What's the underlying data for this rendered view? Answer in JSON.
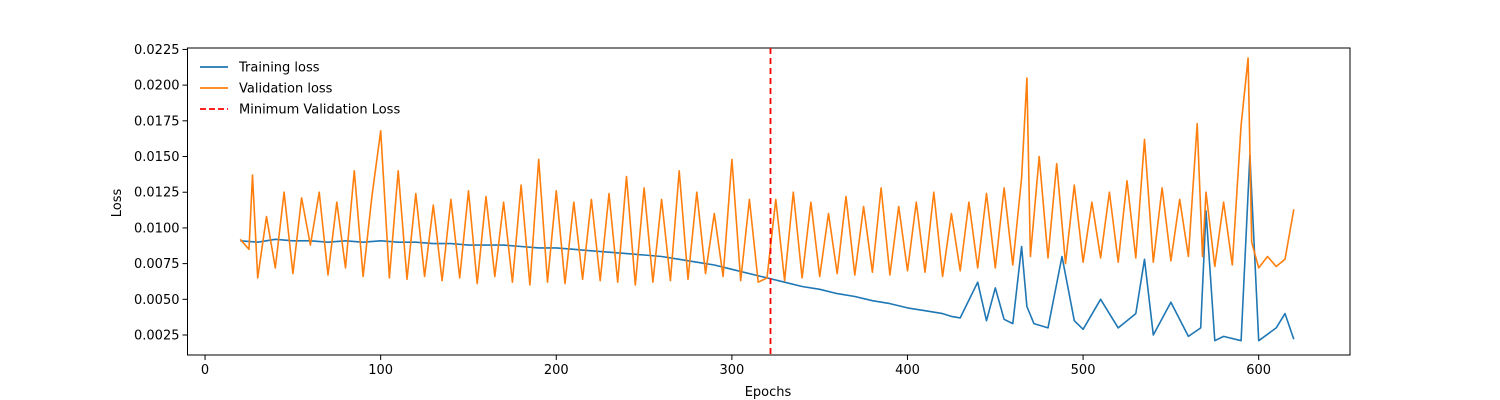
{
  "chart_data": {
    "type": "line",
    "title": "",
    "xlabel": "Epochs",
    "ylabel": "Loss",
    "xlim": [
      -10,
      652
    ],
    "ylim": [
      0.0011,
      0.0226
    ],
    "xticks": [
      0,
      100,
      200,
      300,
      400,
      500,
      600
    ],
    "xtick_labels": [
      "0",
      "100",
      "200",
      "300",
      "400",
      "500",
      "600"
    ],
    "yticks": [
      0.0025,
      0.005,
      0.0075,
      0.01,
      0.0125,
      0.015,
      0.0175,
      0.02,
      0.0225
    ],
    "ytick_labels": [
      "0.0025",
      "0.0050",
      "0.0075",
      "0.0100",
      "0.0125",
      "0.0150",
      "0.0175",
      "0.0200",
      "0.0225"
    ],
    "grid": false,
    "legend_position": "top-left",
    "series": [
      {
        "name": "Training loss",
        "color": "#1f77b4",
        "linestyle": "solid",
        "x": [
          20,
          30,
          40,
          50,
          60,
          70,
          80,
          90,
          100,
          110,
          120,
          130,
          140,
          150,
          160,
          170,
          180,
          190,
          200,
          210,
          220,
          230,
          240,
          250,
          260,
          270,
          280,
          290,
          300,
          310,
          320,
          330,
          340,
          350,
          360,
          370,
          380,
          390,
          400,
          410,
          420,
          425,
          430,
          440,
          445,
          450,
          455,
          460,
          465,
          468,
          472,
          480,
          488,
          495,
          500,
          510,
          520,
          530,
          535,
          540,
          550,
          560,
          567,
          570,
          575,
          580,
          590,
          595,
          600,
          610,
          615,
          620
        ],
        "y": [
          0.0091,
          0.009,
          0.0092,
          0.0091,
          0.0091,
          0.009,
          0.0091,
          0.009,
          0.0091,
          0.009,
          0.009,
          0.0089,
          0.0089,
          0.0088,
          0.0088,
          0.0088,
          0.0087,
          0.0086,
          0.0086,
          0.0085,
          0.0084,
          0.0083,
          0.0082,
          0.0081,
          0.008,
          0.0078,
          0.0076,
          0.0074,
          0.0071,
          0.0068,
          0.0065,
          0.0062,
          0.0059,
          0.0057,
          0.0054,
          0.0052,
          0.0049,
          0.0047,
          0.0044,
          0.0042,
          0.004,
          0.0038,
          0.0037,
          0.0062,
          0.0035,
          0.0058,
          0.0036,
          0.0033,
          0.0087,
          0.0045,
          0.0033,
          0.003,
          0.008,
          0.0035,
          0.0029,
          0.005,
          0.003,
          0.004,
          0.0078,
          0.0025,
          0.0048,
          0.0024,
          0.003,
          0.0112,
          0.0021,
          0.0024,
          0.0021,
          0.0151,
          0.0021,
          0.003,
          0.004,
          0.0022
        ]
      },
      {
        "name": "Validation loss",
        "color": "#ff7f0e",
        "linestyle": "solid",
        "x": [
          20,
          25,
          27,
          30,
          35,
          40,
          45,
          50,
          55,
          60,
          65,
          70,
          75,
          80,
          85,
          90,
          95,
          100,
          105,
          110,
          115,
          120,
          125,
          130,
          135,
          140,
          145,
          150,
          155,
          160,
          165,
          170,
          175,
          180,
          185,
          190,
          195,
          200,
          205,
          210,
          215,
          220,
          225,
          230,
          235,
          240,
          245,
          250,
          255,
          260,
          265,
          270,
          275,
          280,
          285,
          290,
          295,
          300,
          305,
          310,
          315,
          320,
          325,
          330,
          335,
          340,
          345,
          350,
          355,
          360,
          365,
          370,
          375,
          380,
          385,
          390,
          395,
          400,
          405,
          410,
          415,
          420,
          425,
          430,
          435,
          440,
          445,
          450,
          455,
          460,
          465,
          468,
          470,
          475,
          480,
          485,
          490,
          495,
          500,
          505,
          510,
          515,
          520,
          525,
          530,
          535,
          540,
          545,
          550,
          555,
          560,
          565,
          568,
          570,
          575,
          580,
          585,
          590,
          594,
          596,
          600,
          605,
          610,
          615,
          620
        ],
        "y": [
          0.0092,
          0.0085,
          0.0137,
          0.0065,
          0.0108,
          0.0072,
          0.0125,
          0.0068,
          0.0121,
          0.0088,
          0.0125,
          0.0067,
          0.0118,
          0.0072,
          0.014,
          0.0066,
          0.0122,
          0.0168,
          0.0065,
          0.014,
          0.0064,
          0.0124,
          0.0066,
          0.0116,
          0.0063,
          0.012,
          0.0065,
          0.0126,
          0.0061,
          0.0122,
          0.0066,
          0.0118,
          0.0062,
          0.013,
          0.006,
          0.0148,
          0.0062,
          0.0126,
          0.0061,
          0.0118,
          0.0064,
          0.012,
          0.0063,
          0.0124,
          0.0062,
          0.0136,
          0.006,
          0.0128,
          0.0062,
          0.012,
          0.0063,
          0.014,
          0.0064,
          0.0125,
          0.0068,
          0.011,
          0.0066,
          0.0148,
          0.0063,
          0.012,
          0.0062,
          0.0065,
          0.012,
          0.0063,
          0.0125,
          0.0065,
          0.0118,
          0.0066,
          0.011,
          0.0068,
          0.0122,
          0.0067,
          0.0115,
          0.0069,
          0.0128,
          0.0067,
          0.0115,
          0.007,
          0.0118,
          0.0069,
          0.0125,
          0.0066,
          0.011,
          0.007,
          0.0118,
          0.0072,
          0.0124,
          0.0072,
          0.0128,
          0.0074,
          0.0135,
          0.0205,
          0.008,
          0.015,
          0.0079,
          0.0145,
          0.0075,
          0.013,
          0.0076,
          0.0118,
          0.0079,
          0.0125,
          0.0076,
          0.0133,
          0.0079,
          0.0162,
          0.0076,
          0.0128,
          0.0077,
          0.012,
          0.008,
          0.0173,
          0.008,
          0.0125,
          0.0073,
          0.0118,
          0.0074,
          0.0172,
          0.0219,
          0.009,
          0.0072,
          0.008,
          0.0073,
          0.0078,
          0.0113
        ]
      },
      {
        "name": "Minimum Validation Loss",
        "color": "#ff0000",
        "linestyle": "dashed",
        "type": "vline",
        "x": 322
      }
    ]
  }
}
